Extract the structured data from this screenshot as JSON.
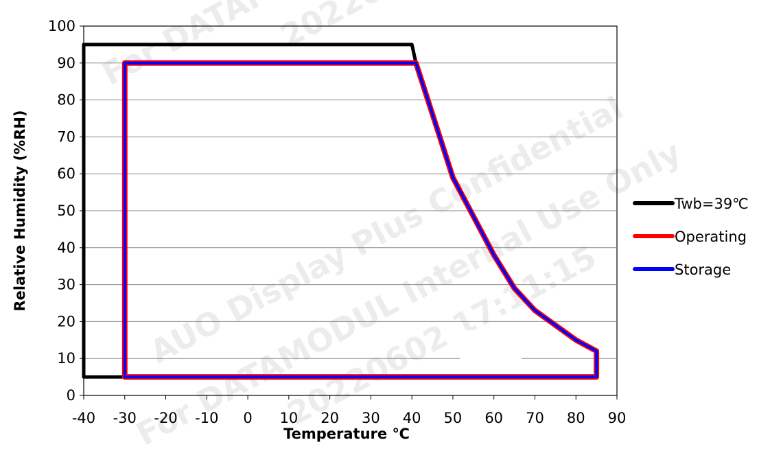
{
  "chart_data": {
    "type": "line",
    "title": "",
    "xlabel": "Temperature ℃",
    "ylabel": "Relative Humidity (%RH)",
    "xlim": [
      -40,
      90
    ],
    "ylim": [
      0,
      100
    ],
    "x_ticks": [
      -40,
      -30,
      -20,
      -10,
      0,
      10,
      20,
      30,
      40,
      50,
      60,
      70,
      80,
      90
    ],
    "y_ticks": [
      0,
      10,
      20,
      30,
      40,
      50,
      60,
      70,
      80,
      90,
      100
    ],
    "grid": "horizontal",
    "legend": "right",
    "series": [
      {
        "name": "Twb=39℃",
        "color": "#000000",
        "points": [
          [
            40,
            5
          ],
          [
            -40,
            5
          ],
          [
            -40,
            95
          ],
          [
            40,
            95
          ],
          [
            41,
            90
          ]
        ]
      },
      {
        "name": "Operating",
        "color": "#ff0000",
        "points": [
          [
            -30,
            5
          ],
          [
            -30,
            90
          ],
          [
            41,
            90
          ],
          [
            50,
            59
          ],
          [
            60,
            38
          ],
          [
            65,
            29
          ],
          [
            70,
            23
          ],
          [
            80,
            15
          ],
          [
            85,
            12
          ],
          [
            85,
            5
          ],
          [
            -30,
            5
          ]
        ]
      },
      {
        "name": "Storage",
        "color": "#0000ff",
        "points": [
          [
            -30,
            5
          ],
          [
            -30,
            90
          ],
          [
            41,
            90
          ],
          [
            50,
            59
          ],
          [
            60,
            38
          ],
          [
            65,
            29
          ],
          [
            70,
            23
          ],
          [
            80,
            15
          ],
          [
            85,
            12
          ],
          [
            85,
            5
          ],
          [
            -30,
            5
          ]
        ]
      }
    ]
  },
  "watermark": [
    "For DATAMODUL",
    "20220602",
    "AUO Display Plus Confidential",
    "For DATAMODUL Internal Use Only",
    "20220602 17:11:15"
  ]
}
